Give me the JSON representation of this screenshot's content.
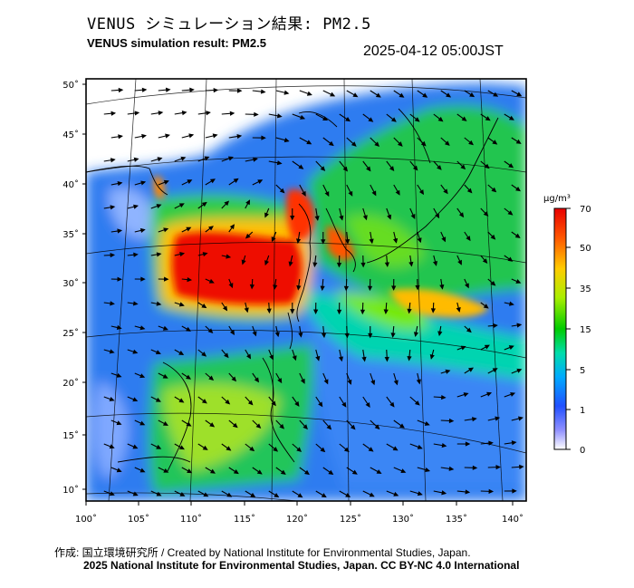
{
  "header": {
    "title_jp": "VENUS シミュレーション結果: PM2.5",
    "title_en": "VENUS simulation result: PM2.5",
    "timestamp": "2025-04-12 05:00JST"
  },
  "map": {
    "lat_labels": [
      "50˚",
      "45˚",
      "40˚",
      "35˚",
      "30˚",
      "25˚",
      "20˚",
      "15˚",
      "10˚"
    ],
    "lon_labels": [
      "100˚",
      "105˚",
      "110˚",
      "115˚",
      "120˚",
      "125˚",
      "130˚",
      "135˚",
      "140˚"
    ],
    "lat_ticks": [
      50,
      45,
      40,
      35,
      30,
      25,
      20,
      15,
      10
    ],
    "lon_ticks": [
      100,
      105,
      110,
      115,
      120,
      125,
      130,
      135,
      140
    ]
  },
  "colorbar": {
    "unit": "μg/m³",
    "tick_labels": [
      "70",
      "50",
      "35",
      "15",
      "5",
      "1",
      "0"
    ],
    "colors": [
      "#ff0000",
      "#ff7700",
      "#ffff00",
      "#77ee00",
      "#00cc00",
      "#00ddaa",
      "#00aaff",
      "#1e5aff",
      "#8c8cff",
      "#ffffff"
    ]
  },
  "footer": {
    "credit_line1": "作成: 国立環境研究所 / Created by National Institute for Environmental Studies, Japan.",
    "credit_line2": "2025 National Institute for Environmental Studies, Japan. CC BY-NC 4.0 International"
  }
}
